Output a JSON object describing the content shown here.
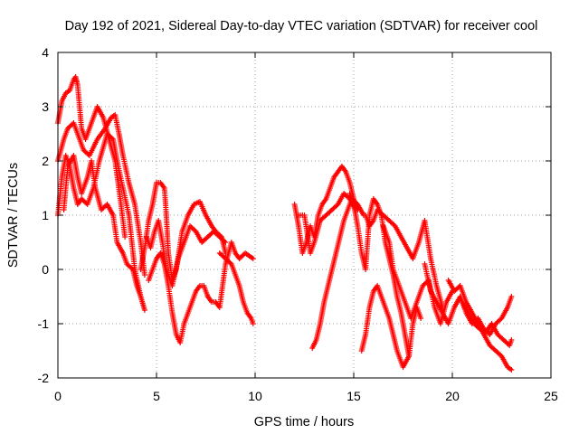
{
  "chart_data": {
    "type": "scatter",
    "title": "Day 192 of 2021, Sidereal Day-to-day VTEC variation (SDTVAR) for receiver cool",
    "xlabel": "GPS time / hours",
    "ylabel": "SDTVAR / TECUs",
    "xlim": [
      0,
      25
    ],
    "ylim": [
      -2,
      4
    ],
    "xticks": [
      "0",
      "5",
      "10",
      "15",
      "20",
      "25"
    ],
    "yticks": [
      "-2",
      "-1",
      "0",
      "1",
      "2",
      "3",
      "4"
    ],
    "grid": true,
    "marker": "+",
    "color": "#ff0000",
    "series": [
      {
        "name": "trace-1",
        "x": [
          0.0,
          0.2,
          0.4,
          0.6,
          0.8,
          0.9,
          1.0,
          1.2,
          1.4,
          1.7,
          2.0,
          2.3,
          2.6,
          2.9,
          3.2,
          3.4
        ],
        "y": [
          2.7,
          3.1,
          3.25,
          3.3,
          3.5,
          3.55,
          3.4,
          2.6,
          2.4,
          2.7,
          3.0,
          2.8,
          2.4,
          2.0,
          1.2,
          0.6
        ]
      },
      {
        "name": "trace-2",
        "x": [
          0.0,
          0.3,
          0.5,
          0.8,
          1.0,
          1.3,
          1.6,
          2.0,
          2.4,
          2.7,
          2.9,
          3.1,
          3.3,
          3.6,
          3.9,
          4.2,
          4.4
        ],
        "y": [
          2.0,
          2.4,
          2.6,
          2.7,
          2.5,
          2.2,
          2.1,
          2.4,
          2.6,
          2.8,
          2.85,
          2.5,
          2.1,
          1.6,
          1.2,
          0.5,
          -0.1
        ]
      },
      {
        "name": "trace-3",
        "x": [
          0.0,
          0.2,
          0.4,
          0.6,
          0.8,
          1.0,
          1.2,
          1.5,
          1.8,
          2.1,
          2.5,
          2.8,
          3.0,
          3.3,
          3.6,
          3.9,
          4.2,
          4.4
        ],
        "y": [
          1.0,
          1.7,
          2.1,
          1.9,
          1.5,
          1.2,
          1.3,
          1.2,
          1.5,
          2.0,
          2.5,
          2.4,
          2.0,
          1.5,
          1.0,
          0.0,
          -0.5,
          -0.75
        ]
      },
      {
        "name": "trace-4",
        "x": [
          0.3,
          0.5,
          0.8,
          1.0,
          1.2,
          1.5,
          1.7,
          1.9,
          2.2,
          2.5,
          2.8,
          3.0,
          3.3,
          3.5,
          3.8,
          4.0,
          4.2
        ],
        "y": [
          1.1,
          1.9,
          2.1,
          1.7,
          1.4,
          1.7,
          2.0,
          1.5,
          1.1,
          1.2,
          1.0,
          0.5,
          0.3,
          0.1,
          0.0,
          -0.3,
          -0.5
        ]
      },
      {
        "name": "trace-5",
        "x": [
          4.2,
          4.4,
          4.6,
          4.8,
          5.0,
          5.2,
          5.4,
          5.5,
          5.6,
          5.8,
          6.0,
          6.3,
          6.6,
          6.9,
          7.2,
          7.5,
          7.8,
          8.0,
          8.3,
          8.5
        ],
        "y": [
          0.0,
          0.4,
          0.9,
          1.2,
          1.6,
          1.6,
          1.5,
          1.0,
          0.3,
          -0.2,
          0.0,
          0.7,
          1.0,
          1.2,
          1.25,
          1.0,
          0.8,
          0.7,
          0.6,
          0.3
        ]
      },
      {
        "name": "trace-6",
        "x": [
          4.5,
          4.7,
          4.9,
          5.1,
          5.3,
          5.5,
          5.8,
          6.1,
          6.4,
          6.7,
          7.0,
          7.3,
          7.6,
          7.9,
          8.2,
          8.5
        ],
        "y": [
          0.6,
          0.4,
          0.7,
          0.9,
          0.5,
          0.0,
          -0.3,
          0.2,
          0.5,
          0.8,
          0.7,
          0.5,
          0.6,
          0.7,
          0.6,
          0.5
        ]
      },
      {
        "name": "trace-7",
        "x": [
          4.6,
          4.8,
          5.0,
          5.2,
          5.4,
          5.6,
          5.8,
          6.0,
          6.2,
          6.4,
          6.6,
          6.8,
          7.0,
          7.2,
          7.4,
          7.6
        ],
        "y": [
          -0.2,
          0.0,
          0.2,
          0.3,
          0.1,
          -0.3,
          -0.8,
          -1.2,
          -1.35,
          -1.0,
          -0.8,
          -0.6,
          -0.4,
          -0.3,
          -0.3,
          -0.5
        ]
      },
      {
        "name": "trace-8",
        "x": [
          7.6,
          7.8,
          8.0,
          8.2,
          8.5,
          8.8,
          9.0,
          9.2,
          9.5,
          9.7,
          9.9
        ],
        "y": [
          -0.5,
          -0.6,
          -0.6,
          -0.7,
          0.1,
          0.5,
          0.3,
          0.2,
          0.3,
          0.25,
          0.2
        ]
      },
      {
        "name": "trace-9",
        "x": [
          8.2,
          8.5,
          8.8,
          9.0,
          9.2,
          9.4,
          9.6,
          9.8,
          9.9
        ],
        "y": [
          0.3,
          0.2,
          0.1,
          -0.1,
          -0.3,
          -0.6,
          -0.8,
          -0.9,
          -1.0
        ]
      },
      {
        "name": "trace-10",
        "x": [
          12.0,
          12.2,
          12.4,
          12.6,
          12.8,
          13.0,
          13.2,
          13.4,
          13.6,
          13.8,
          14.0,
          14.2,
          14.4,
          14.6,
          14.8,
          15.0,
          15.2
        ],
        "y": [
          1.2,
          0.8,
          0.3,
          0.5,
          0.8,
          0.6,
          1.0,
          1.2,
          1.3,
          1.5,
          1.7,
          1.8,
          1.9,
          1.8,
          1.6,
          1.3,
          1.1
        ]
      },
      {
        "name": "trace-11",
        "x": [
          12.2,
          12.5,
          12.8,
          13.0,
          13.3,
          13.6,
          13.9,
          14.2,
          14.5,
          14.8,
          15.1
        ],
        "y": [
          1.0,
          1.0,
          0.3,
          0.5,
          0.9,
          1.0,
          1.1,
          1.2,
          1.4,
          1.3,
          1.1
        ]
      },
      {
        "name": "trace-12",
        "x": [
          12.9,
          13.1,
          13.3,
          13.5,
          13.7,
          13.9,
          14.1,
          14.3,
          14.5,
          14.7,
          14.9,
          15.2,
          15.5
        ],
        "y": [
          -1.45,
          -1.3,
          -1.0,
          -0.6,
          -0.3,
          0.0,
          0.3,
          0.6,
          0.9,
          1.1,
          1.3,
          1.2,
          1.0
        ]
      },
      {
        "name": "trace-13",
        "x": [
          14.8,
          15.0,
          15.2,
          15.4,
          15.6,
          15.8,
          16.0,
          16.2,
          16.4,
          16.6,
          16.8,
          17.0,
          17.2,
          17.4,
          17.6,
          17.8
        ],
        "y": [
          1.4,
          1.2,
          0.8,
          0.3,
          0.0,
          1.0,
          1.3,
          1.2,
          1.0,
          0.5,
          0.2,
          -0.1,
          -0.5,
          -0.8,
          -1.2,
          -1.6
        ]
      },
      {
        "name": "trace-14",
        "x": [
          15.4,
          15.6,
          15.8,
          16.0,
          16.2,
          16.4,
          16.6,
          16.8,
          17.0,
          17.2,
          17.5,
          17.8,
          18.0,
          18.2,
          18.4
        ],
        "y": [
          -1.5,
          -1.2,
          -0.7,
          -0.4,
          -0.3,
          -0.5,
          -0.7,
          -0.9,
          -1.2,
          -1.5,
          -1.8,
          -1.6,
          -1.0,
          -0.7,
          -0.9
        ]
      },
      {
        "name": "trace-15",
        "x": [
          15.6,
          15.8,
          16.0,
          16.2,
          16.5,
          16.8,
          17.1,
          17.4,
          17.7,
          18.0,
          18.3,
          18.6,
          18.9,
          19.2,
          19.5
        ],
        "y": [
          1.0,
          0.8,
          0.9,
          1.1,
          1.0,
          0.9,
          0.8,
          0.6,
          0.4,
          0.2,
          0.5,
          0.9,
          0.2,
          -0.3,
          -0.7
        ]
      },
      {
        "name": "trace-16",
        "x": [
          16.5,
          16.8,
          17.0,
          17.3,
          17.6,
          17.9,
          18.2,
          18.5,
          18.8,
          19.1,
          19.4,
          19.7,
          20.0
        ],
        "y": [
          0.8,
          0.5,
          0.0,
          -0.3,
          -0.6,
          -0.9,
          -0.6,
          -0.3,
          -0.2,
          -0.7,
          -1.0,
          -0.6,
          -0.4
        ]
      },
      {
        "name": "trace-17",
        "x": [
          18.6,
          18.9,
          19.2,
          19.5,
          19.8,
          20.1,
          20.4,
          20.7,
          21.0,
          21.3,
          21.6,
          21.9,
          22.2,
          22.5,
          22.8,
          23.0
        ],
        "y": [
          0.1,
          -0.4,
          -0.6,
          -0.8,
          -1.0,
          -0.7,
          -0.5,
          -0.8,
          -1.0,
          -0.9,
          -1.1,
          -1.2,
          -1.0,
          -0.9,
          -0.7,
          -0.5
        ]
      },
      {
        "name": "trace-18",
        "x": [
          19.8,
          20.1,
          20.4,
          20.7,
          21.0,
          21.3,
          21.6,
          21.9,
          22.2,
          22.5,
          22.8,
          23.0
        ],
        "y": [
          -0.2,
          -0.4,
          -0.3,
          -0.6,
          -0.8,
          -1.0,
          -1.2,
          -1.4,
          -1.5,
          -1.6,
          -1.8,
          -1.85
        ]
      },
      {
        "name": "trace-19",
        "x": [
          20.5,
          20.8,
          21.1,
          21.4,
          21.7,
          22.0,
          22.3,
          22.6,
          22.9,
          23.0
        ],
        "y": [
          -0.6,
          -0.8,
          -1.0,
          -1.1,
          -1.15,
          -1.0,
          -1.2,
          -1.3,
          -1.4,
          -1.3
        ]
      }
    ]
  }
}
